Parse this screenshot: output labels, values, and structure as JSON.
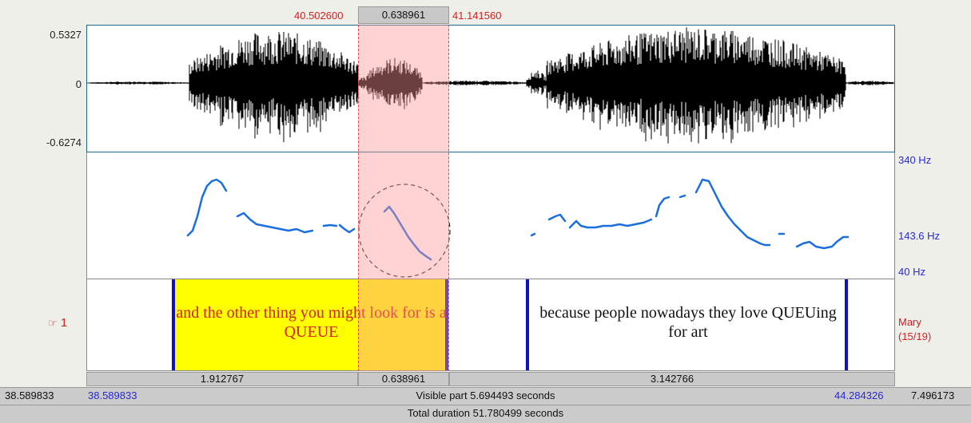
{
  "selection": {
    "start_time": "40.502600",
    "duration": "0.638961",
    "end_time": "41.141560"
  },
  "waveform": {
    "max_label": "0.5327",
    "zero_label": "0",
    "min_label": "-0.6274"
  },
  "pitch": {
    "top_hz": "340 Hz",
    "mid_hz": "143.6 Hz",
    "bottom_hz": "40 Hz"
  },
  "tier": {
    "number": "1",
    "speaker_name": "Mary",
    "speaker_count": "(15/19)",
    "intervals": [
      {
        "text": "and the other thing you might look for is a QUEUE"
      },
      {
        "text": "because people nowadays they love QUEUing for art"
      }
    ]
  },
  "durations": [
    "1.912767",
    "0.638961",
    "3.142766"
  ],
  "visible": {
    "left_outer": "38.589833",
    "left_inner": "38.589833",
    "label": "Visible part 5.694493 seconds",
    "right_inner": "44.284326",
    "right_outer": "7.496173"
  },
  "total": {
    "label": "Total duration 51.780499 seconds"
  },
  "colors": {
    "selection": "#ff9696",
    "highlight_interval": "#ffff00",
    "boundary": "#1010c0",
    "pitch_line": "#1a6ee0",
    "accent_red": "#d42020"
  }
}
